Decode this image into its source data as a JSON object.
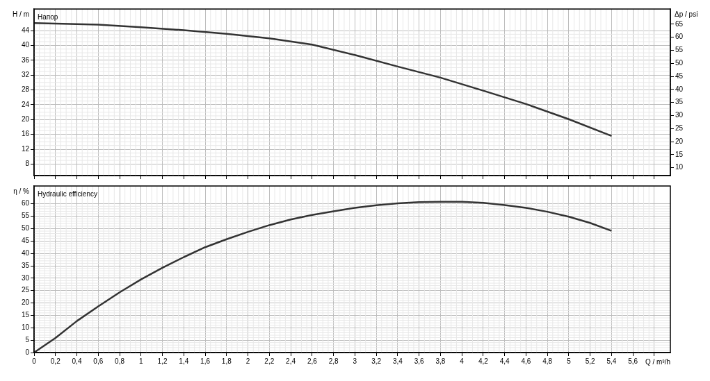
{
  "chart_data": [
    {
      "type": "line",
      "title": "Напор",
      "ylabel": "H / m",
      "y2label": "Δp / psi",
      "color": "#333333",
      "grid": true,
      "tick_labels": "y",
      "x": [
        0,
        0.6,
        1.0,
        1.4,
        1.8,
        2.2,
        2.6,
        3.0,
        3.4,
        3.8,
        4.2,
        4.6,
        5.0,
        5.4
      ],
      "values": [
        46.0,
        45.6,
        44.9,
        44.1,
        43.1,
        41.9,
        40.2,
        37.4,
        34.3,
        31.3,
        27.8,
        24.2,
        20.1,
        15.6
      ],
      "xlim": [
        0,
        5.95
      ],
      "xticks": [
        0,
        0.2,
        0.4,
        0.6,
        0.8,
        1,
        1.2,
        1.4,
        1.6,
        1.8,
        2,
        2.2,
        2.4,
        2.6,
        2.8,
        3,
        3.2,
        3.4,
        3.6,
        3.8,
        4,
        4.2,
        4.4,
        4.6,
        4.8,
        5,
        5.2,
        5.4,
        5.6,
        5.8
      ],
      "ylim": [
        4.9,
        49.8
      ],
      "yticks": [
        8,
        12,
        16,
        20,
        24,
        28,
        32,
        36,
        40,
        44
      ],
      "y2lim": [
        7.0,
        70.8
      ],
      "y2ticks": [
        10,
        15,
        20,
        25,
        30,
        35,
        40,
        45,
        50,
        55,
        60,
        65
      ]
    },
    {
      "type": "line",
      "title": "Hydraulic efficiency",
      "ylabel": "η / %",
      "xlabel": "Q / m³/h",
      "color": "#333333",
      "grid": true,
      "x": [
        0,
        0.2,
        0.4,
        0.6,
        0.8,
        1.0,
        1.2,
        1.4,
        1.6,
        1.8,
        2.0,
        2.2,
        2.4,
        2.6,
        2.8,
        3.0,
        3.2,
        3.4,
        3.6,
        3.8,
        4.0,
        4.2,
        4.4,
        4.6,
        4.8,
        5.0,
        5.2,
        5.4
      ],
      "values": [
        0,
        5.9,
        12.7,
        18.6,
        24.3,
        29.5,
        34.2,
        38.5,
        42.5,
        45.7,
        48.7,
        51.4,
        53.7,
        55.5,
        57.0,
        58.4,
        59.4,
        60.2,
        60.7,
        60.8,
        60.8,
        60.4,
        59.5,
        58.4,
        56.8,
        54.8,
        52.3,
        49.1
      ],
      "xlim": [
        0,
        5.95
      ],
      "xticks": [
        0,
        {
          "value": 0.2,
          "label": "0,2"
        },
        {
          "value": 0.4,
          "label": "0,4"
        },
        {
          "value": 0.6,
          "label": "0,6"
        },
        {
          "value": 0.8,
          "label": "0,8"
        },
        1,
        {
          "value": 1.2,
          "label": "1,2"
        },
        {
          "value": 1.4,
          "label": "1,4"
        },
        {
          "value": 1.6,
          "label": "1,6"
        },
        {
          "value": 1.8,
          "label": "1,8"
        },
        2,
        {
          "value": 2.2,
          "label": "2,2"
        },
        {
          "value": 2.4,
          "label": "2,4"
        },
        {
          "value": 2.6,
          "label": "2,6"
        },
        {
          "value": 2.8,
          "label": "2,8"
        },
        3,
        {
          "value": 3.2,
          "label": "3,2"
        },
        {
          "value": 3.4,
          "label": "3,4"
        },
        {
          "value": 3.6,
          "label": "3,6"
        },
        {
          "value": 3.8,
          "label": "3,8"
        },
        4,
        {
          "value": 4.2,
          "label": "4,2"
        },
        {
          "value": 4.4,
          "label": "4,4"
        },
        {
          "value": 4.6,
          "label": "4,6"
        },
        {
          "value": 4.8,
          "label": "4,8"
        },
        5,
        {
          "value": 5.2,
          "label": "5,2"
        },
        {
          "value": 5.4,
          "label": "5,4"
        },
        {
          "value": 5.6,
          "label": "5,6"
        },
        {
          "value": 5.8,
          "label": null
        }
      ],
      "ylim": [
        0,
        67.2
      ],
      "yticks": [
        0,
        5,
        10,
        15,
        20,
        25,
        30,
        35,
        40,
        45,
        50,
        55,
        60
      ]
    }
  ]
}
